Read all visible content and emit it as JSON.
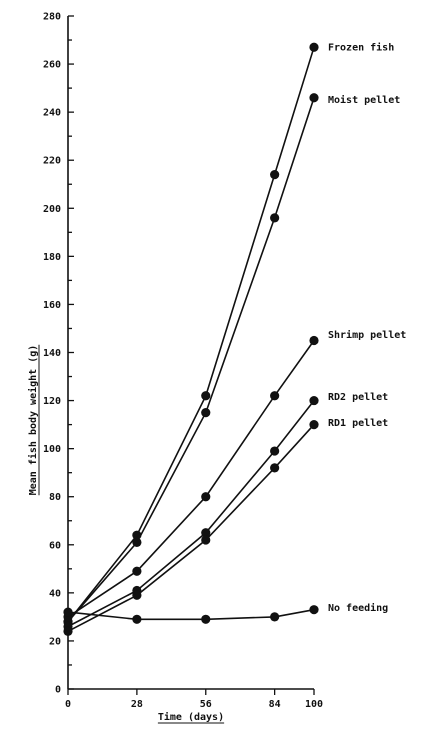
{
  "chart_data": {
    "type": "line",
    "xlabel": "Time (days)",
    "ylabel": "Mean fish body weight (g)",
    "xlim": [
      0,
      100
    ],
    "ylim": [
      0,
      280
    ],
    "x_ticks": [
      0,
      28,
      56,
      84,
      100
    ],
    "y_ticks": [
      0,
      20,
      40,
      60,
      80,
      100,
      120,
      140,
      160,
      180,
      200,
      220,
      240,
      260,
      280
    ],
    "grid": false,
    "legend": "labels at line ends (right)",
    "series": [
      {
        "name": "Frozen fish",
        "x": [
          0,
          28,
          56,
          84,
          100
        ],
        "y": [
          28,
          64,
          122,
          214,
          267
        ]
      },
      {
        "name": "Moist pellet",
        "x": [
          0,
          28,
          56,
          84,
          100
        ],
        "y": [
          28,
          61,
          115,
          196,
          246
        ]
      },
      {
        "name": "Shrimp pellet",
        "x": [
          0,
          28,
          56,
          84,
          100
        ],
        "y": [
          30,
          49,
          80,
          122,
          145
        ]
      },
      {
        "name": "RD2 pellet",
        "x": [
          0,
          28,
          56,
          84,
          100
        ],
        "y": [
          26,
          41,
          65,
          99,
          120
        ]
      },
      {
        "name": "RD1 pellet",
        "x": [
          0,
          28,
          56,
          84,
          100
        ],
        "y": [
          24,
          39,
          62,
          92,
          110
        ]
      },
      {
        "name": "No feeding",
        "x": [
          0,
          28,
          56,
          84,
          100
        ],
        "y": [
          32,
          29,
          29,
          30,
          33
        ]
      }
    ]
  }
}
